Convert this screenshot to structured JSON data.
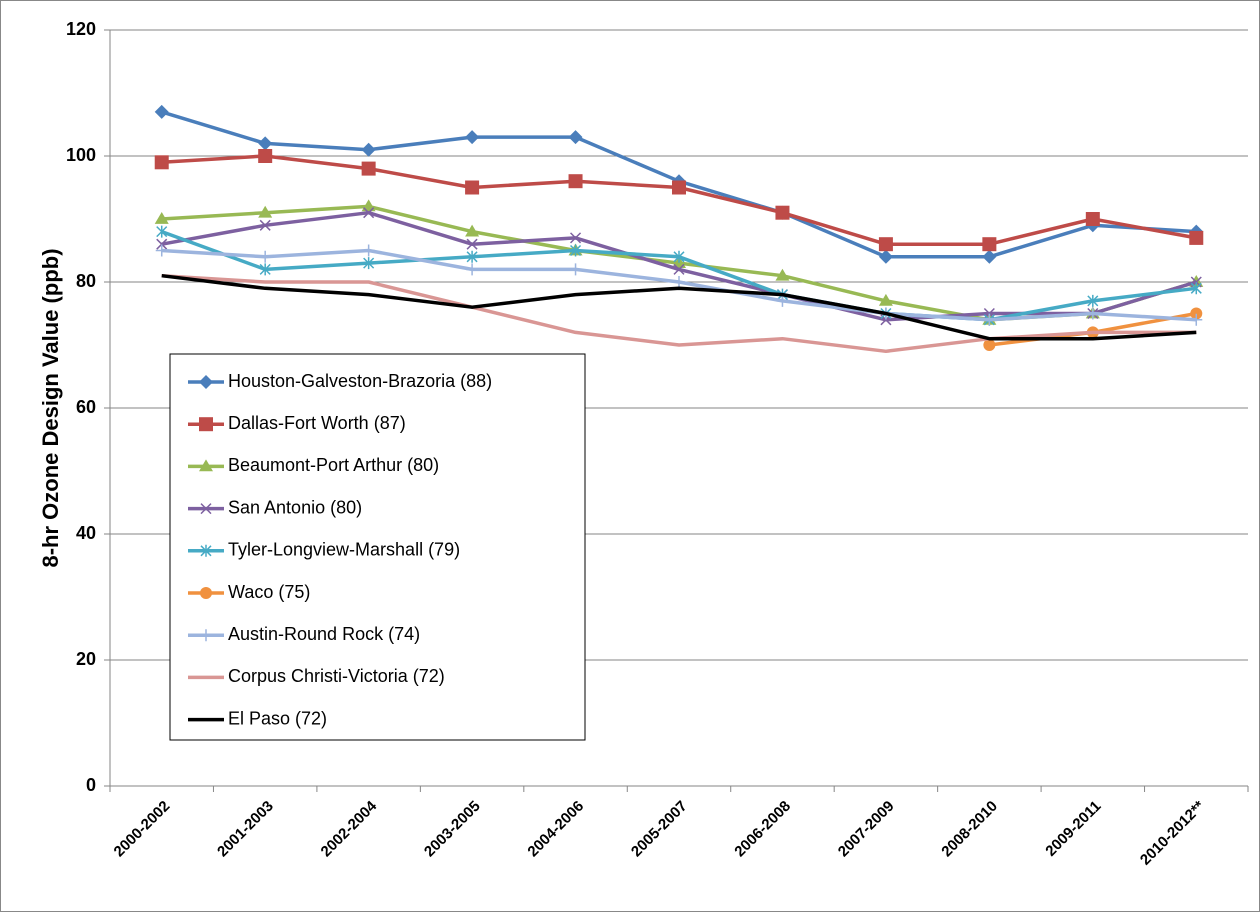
{
  "chart_data": {
    "type": "line",
    "y_label": "8-hr Ozone Design Value (ppb)",
    "categories": [
      "2000-2002",
      "2001-2003",
      "2002-2004",
      "2003-2005",
      "2004-2006",
      "2005-2007",
      "2006-2008",
      "2007-2009",
      "2008-2010",
      "2009-2011",
      "2010-2012**"
    ],
    "ylim": [
      0,
      120
    ],
    "yticks": [
      0,
      20,
      40,
      60,
      80,
      100,
      120
    ],
    "grid": true,
    "series": [
      {
        "name": "Houston-Galveston-Brazoria (88)",
        "color": "#4a7ebb",
        "marker": "diamond",
        "values": [
          107,
          102,
          101,
          103,
          103,
          96,
          91,
          84,
          84,
          89,
          88
        ]
      },
      {
        "name": "Dallas-Fort Worth (87)",
        "color": "#be4b48",
        "marker": "square",
        "values": [
          99,
          100,
          98,
          95,
          96,
          95,
          91,
          86,
          86,
          90,
          87
        ]
      },
      {
        "name": "Beaumont-Port Arthur (80)",
        "color": "#98b954",
        "marker": "triangle",
        "values": [
          90,
          91,
          92,
          88,
          85,
          83,
          81,
          77,
          74,
          75,
          80
        ]
      },
      {
        "name": "San Antonio (80)",
        "color": "#7d60a0",
        "marker": "x",
        "values": [
          86,
          89,
          91,
          86,
          87,
          82,
          78,
          74,
          75,
          75,
          80
        ]
      },
      {
        "name": "Tyler-Longview-Marshall (79)",
        "color": "#46aac5",
        "marker": "star",
        "values": [
          88,
          82,
          83,
          84,
          85,
          84,
          78,
          75,
          74,
          77,
          79
        ]
      },
      {
        "name": "Waco (75)",
        "color": "#f0913f",
        "marker": "circle",
        "values": [
          null,
          null,
          null,
          null,
          null,
          null,
          null,
          null,
          70,
          72,
          75
        ]
      },
      {
        "name": "Austin-Round Rock (74)",
        "color": "#9cb4de",
        "marker": "plus",
        "values": [
          85,
          84,
          85,
          82,
          82,
          80,
          77,
          75,
          74,
          75,
          74
        ]
      },
      {
        "name": "Corpus Christi-Victoria (72)",
        "color": "#d99694",
        "marker": "none",
        "values": [
          81,
          80,
          80,
          76,
          72,
          70,
          71,
          69,
          71,
          72,
          72
        ]
      },
      {
        "name": "El Paso (72)",
        "color": "#000000",
        "marker": "none",
        "values": [
          81,
          79,
          78,
          76,
          78,
          79,
          78,
          75,
          71,
          71,
          72
        ]
      }
    ]
  }
}
